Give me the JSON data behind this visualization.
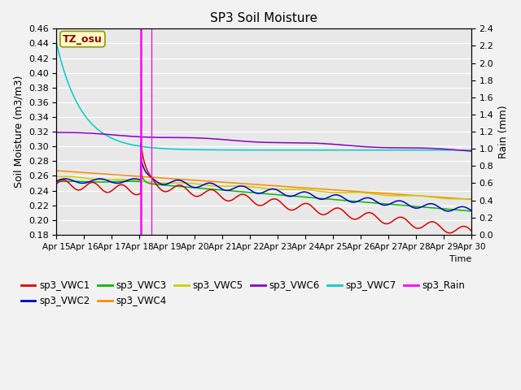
{
  "title": "SP3 Soil Moisture",
  "xlabel": "Time",
  "ylabel_left": "Soil Moisture (m3/m3)",
  "ylabel_right": "Rain (mm)",
  "ylim_left": [
    0.18,
    0.46
  ],
  "ylim_right": [
    0.0,
    2.4
  ],
  "plot_bg_color": "#e8e8e8",
  "fig_bg_color": "#f2f2f2",
  "grid_color": "#ffffff",
  "tz_label": "TZ_osu",
  "tz_box_facecolor": "#ffffcc",
  "tz_box_edgecolor": "#999900",
  "colors": {
    "VWC1": "#dd0000",
    "VWC2": "#0000cc",
    "VWC3": "#00bb00",
    "VWC4": "#ff8800",
    "VWC5": "#cccc00",
    "VWC6": "#8800cc",
    "VWC7": "#00cccc",
    "Rain": "#ff00ff"
  }
}
